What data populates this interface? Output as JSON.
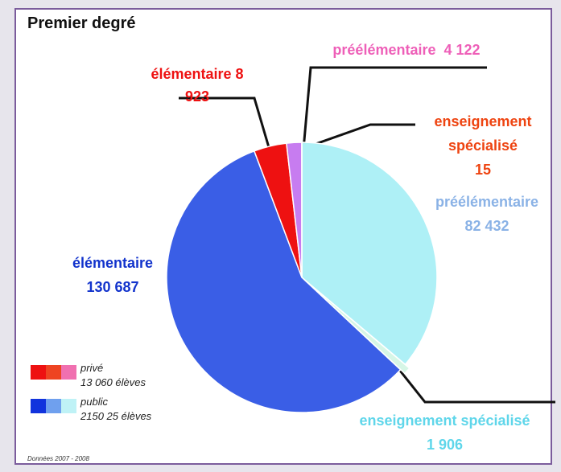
{
  "chart_data": {
    "type": "pie",
    "title": "Premier degré",
    "labels": [
      "préélémentaire",
      "enseignement spécialisé",
      "élémentaire",
      "élémentaire",
      "préélémentaire",
      "enseignement spécialisé"
    ],
    "values": [
      82432,
      1906,
      130687,
      8923,
      4122,
      15
    ],
    "value_labels": [
      "82 432",
      "1 906",
      "130 687",
      "8 923",
      "4 122",
      "15"
    ],
    "colors": [
      "#aef0f6",
      "#d6f6e6",
      "#3a5ee6",
      "#ee1111",
      "#c77cf0",
      "#ff6633"
    ],
    "label_colors": [
      "#8ab2e6",
      "#5fd6ea",
      "#1233cc",
      "#ee1111",
      "#ee5fb8",
      "#ee4411"
    ],
    "legend": [
      {
        "name": "privé",
        "note": "13 060 élèves",
        "colors": [
          "#ee1111",
          "#ee4422",
          "#f070b0"
        ]
      },
      {
        "name": "public",
        "note": "2150 25 élèves",
        "colors": [
          "#1133dd",
          "#6fa0ee",
          "#bff2f6"
        ]
      }
    ],
    "source": "Données 2007 - 2008"
  }
}
